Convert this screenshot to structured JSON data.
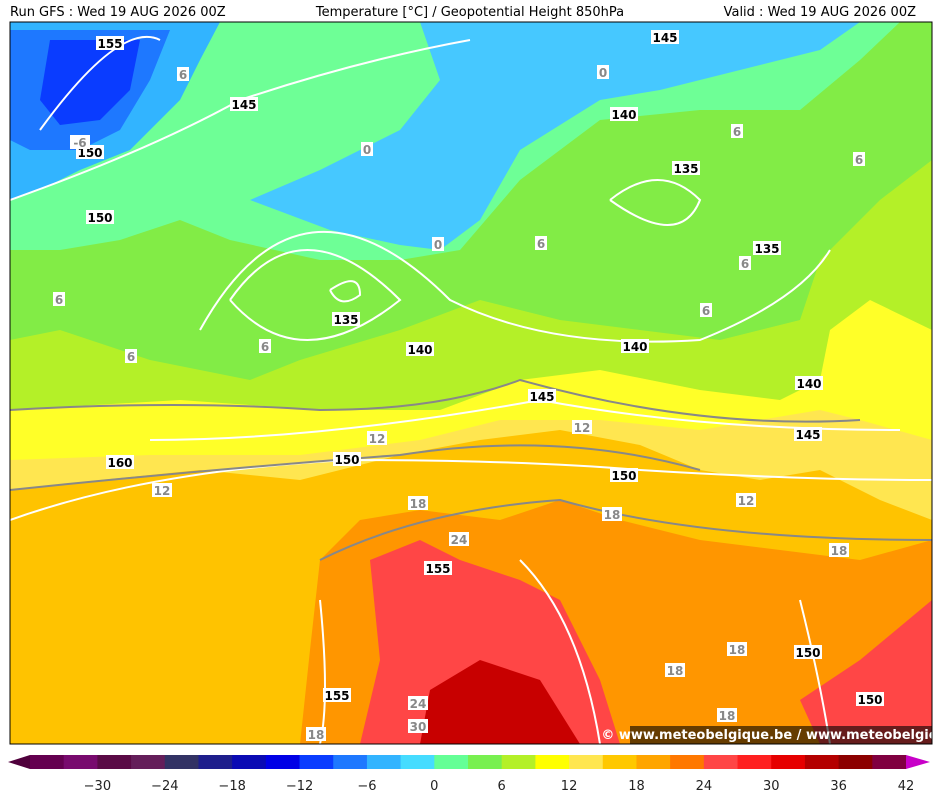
{
  "header": {
    "left": "Run GFS : Wed 19 AUG 2026 00Z",
    "center": "Temperature [°C] / Geopotential Height 850hPa",
    "right": "Valid : Wed 19 AUG 2026 00Z"
  },
  "map": {
    "height_labels": [
      "155",
      "145",
      "150",
      "145",
      "140",
      "135",
      "150",
      "135",
      "135",
      "140",
      "140",
      "140",
      "145",
      "145",
      "150",
      "160",
      "150",
      "155",
      "150",
      "155",
      "150"
    ],
    "temperature_labels": [
      "6",
      "-6",
      "0",
      "0",
      "6",
      "6",
      "0",
      "6",
      "6",
      "6",
      "6",
      "6",
      "6",
      "12",
      "12",
      "12",
      "18",
      "12",
      "18",
      "24",
      "18",
      "18",
      "18",
      "24",
      "30",
      "18",
      "18"
    ],
    "watermark": "© www.meteobelgique.be / www.meteobelgie.be"
  },
  "colorbar": {
    "colors": [
      "#50003c",
      "#640050",
      "#780a6e",
      "#5a0a46",
      "#641e5a",
      "#323264",
      "#1e1e8c",
      "#0a0ab4",
      "#0000e6",
      "#0a3cff",
      "#1e78ff",
      "#32b4ff",
      "#46dcff",
      "#64ff96",
      "#78f050",
      "#b4f028",
      "#ffff00",
      "#ffe650",
      "#ffc800",
      "#ffa500",
      "#ff7800",
      "#ff4646",
      "#ff2020",
      "#e60000",
      "#b40000",
      "#8c0000",
      "#800040",
      "#c800c8"
    ],
    "tick_labels": [
      "−30",
      "−24",
      "−18",
      "−12",
      "−6",
      "0",
      "6",
      "12",
      "18",
      "24",
      "30",
      "36",
      "42"
    ]
  }
}
